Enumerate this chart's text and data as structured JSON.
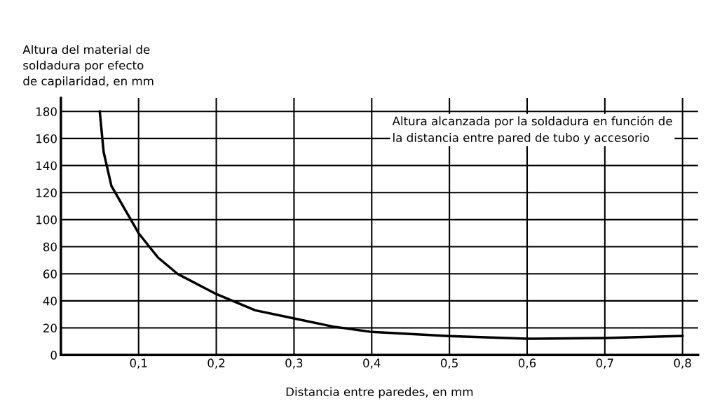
{
  "chart_data": {
    "type": "line",
    "ylabel": "Altura del material de\nsoldadura por efecto\nde capilaridad, en mm",
    "xlabel": "Distancia entre paredes, en mm",
    "annotations": [
      "Altura alcanzada por la soldadura en función de\nla distancia entre pared de tubo y accesorio"
    ],
    "x": [
      0.05,
      0.055,
      0.065,
      0.08,
      0.1,
      0.125,
      0.15,
      0.2,
      0.25,
      0.3,
      0.35,
      0.4,
      0.5,
      0.6,
      0.7,
      0.8
    ],
    "series": [
      {
        "color": "#000000",
        "values": [
          180,
          150,
          125,
          110,
          90,
          72,
          60,
          45,
          33,
          27,
          21,
          17,
          14,
          12,
          12.5,
          14
        ]
      }
    ],
    "xlim": [
      0,
      0.82
    ],
    "ylim": [
      0,
      190
    ],
    "xticks": [
      {
        "value": 0.1,
        "label": "0,1"
      },
      {
        "value": 0.2,
        "label": "0,2"
      },
      {
        "value": 0.3,
        "label": "0,3"
      },
      {
        "value": 0.4,
        "label": "0,4"
      },
      {
        "value": 0.5,
        "label": "0,5"
      },
      {
        "value": 0.6,
        "label": "0,6"
      },
      {
        "value": 0.7,
        "label": "0,7"
      },
      {
        "value": 0.8,
        "label": "0,8"
      }
    ],
    "yticks": [
      0,
      20,
      40,
      60,
      80,
      100,
      120,
      140,
      160,
      180
    ],
    "grid": true,
    "line_style": "solid"
  }
}
